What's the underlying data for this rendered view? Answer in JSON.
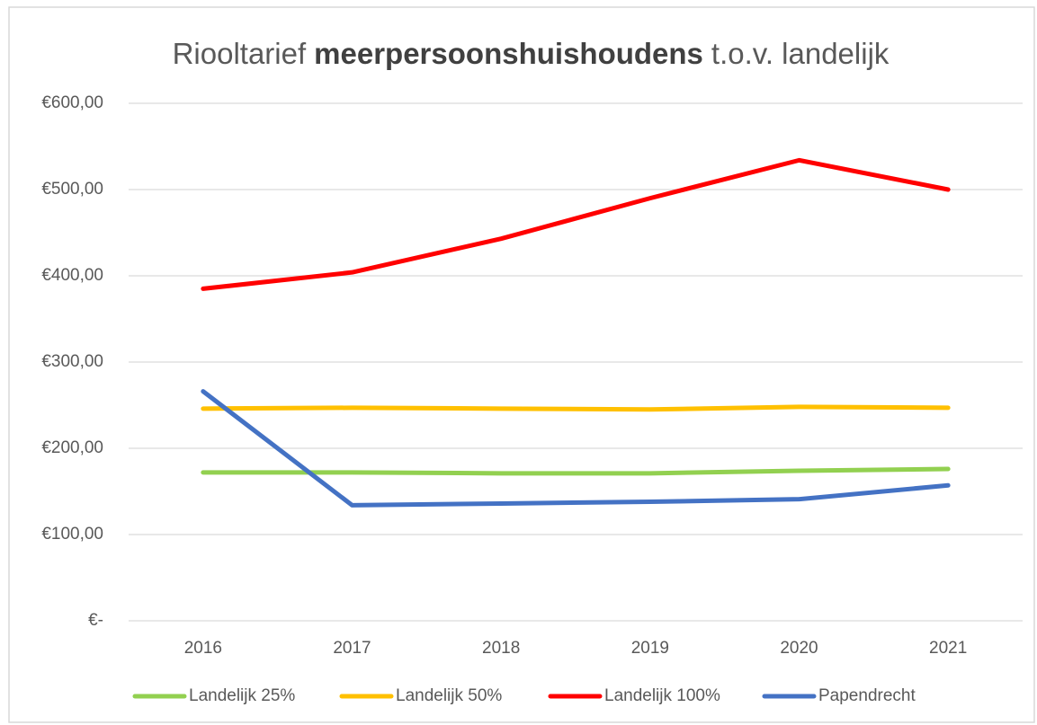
{
  "chart_data": {
    "type": "line",
    "title": [
      {
        "text": "Riooltarief",
        "bold": false
      },
      {
        "text": "meerpersoonshuishoudens",
        "bold": true
      },
      {
        "text": "t.o.v. landelijk",
        "bold": false
      }
    ],
    "categories": [
      "2016",
      "2017",
      "2018",
      "2019",
      "2020",
      "2021"
    ],
    "series": [
      {
        "name": "Landelijk 25%",
        "color": "#92d050",
        "values": [
          172,
          172,
          171,
          171,
          174,
          176
        ]
      },
      {
        "name": "Landelijk 50%",
        "color": "#ffc000",
        "values": [
          246,
          247,
          246,
          245,
          248,
          247
        ]
      },
      {
        "name": "Landelijk 100%",
        "color": "#ff0000",
        "values": [
          385,
          404,
          443,
          490,
          534,
          500
        ]
      },
      {
        "name": "Papendrecht",
        "color": "#4472c4",
        "values": [
          266,
          134,
          136,
          138,
          141,
          157
        ]
      }
    ],
    "ylim": [
      0,
      600
    ],
    "yticks": [
      {
        "value": 0,
        "label": "€-"
      },
      {
        "value": 100,
        "label": "€100,00"
      },
      {
        "value": 200,
        "label": "€200,00"
      },
      {
        "value": 300,
        "label": "€300,00"
      },
      {
        "value": 400,
        "label": "€400,00"
      },
      {
        "value": 500,
        "label": "€500,00"
      },
      {
        "value": 600,
        "label": "€600,00"
      }
    ],
    "grid": true,
    "legend": "bottom"
  }
}
